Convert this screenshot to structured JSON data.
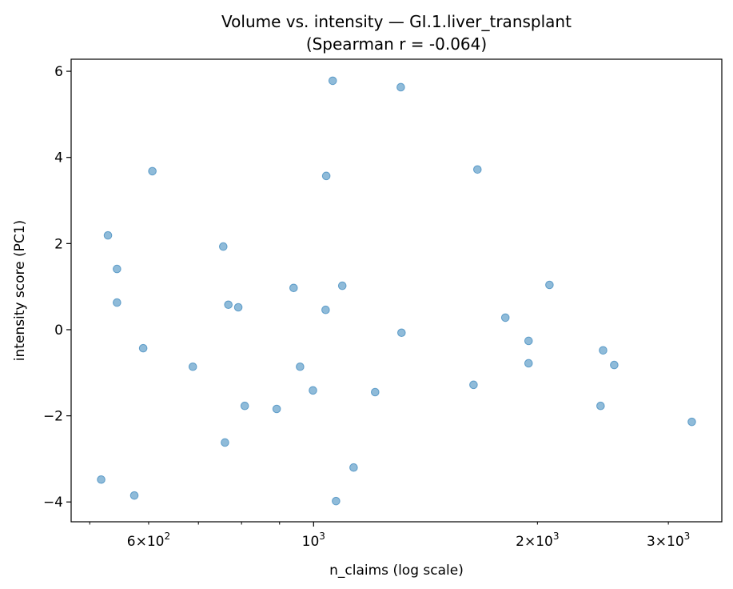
{
  "chart_data": {
    "type": "scatter",
    "title": "Volume vs. intensity — GI.1.liver_transplant",
    "subtitle": "(Spearman r = -0.064)",
    "xlabel": "n_claims (log scale)",
    "ylabel": "intensity score (PC1)",
    "xscale": "log",
    "xlim": [
      472,
      3540
    ],
    "ylim": [
      -4.46,
      6.28
    ],
    "grid": false,
    "marker_color": "#1f77b4",
    "marker_alpha": 0.5,
    "x_ticks": [
      {
        "value": 600,
        "base": "6",
        "exp": "2"
      },
      {
        "value": 1000,
        "base": "",
        "exp": "3"
      },
      {
        "value": 2000,
        "base": "2",
        "exp": "3"
      },
      {
        "value": 3000,
        "base": "3",
        "exp": "3"
      }
    ],
    "x_minor_ticks": [
      500,
      700,
      800,
      900
    ],
    "y_ticks": [
      -4,
      -2,
      0,
      2,
      4,
      6
    ],
    "y_tick_labels": [
      "−4",
      "−2",
      "0",
      "2",
      "4",
      "6"
    ],
    "points": [
      [
        518,
        -3.48
      ],
      [
        529,
        2.19
      ],
      [
        544,
        1.41
      ],
      [
        544,
        0.63
      ],
      [
        574,
        -3.85
      ],
      [
        590,
        -0.43
      ],
      [
        607,
        3.68
      ],
      [
        688,
        -0.86
      ],
      [
        756,
        1.93
      ],
      [
        760,
        -2.62
      ],
      [
        768,
        0.58
      ],
      [
        792,
        0.52
      ],
      [
        808,
        -1.77
      ],
      [
        892,
        -1.84
      ],
      [
        940,
        0.97
      ],
      [
        959,
        -0.86
      ],
      [
        998,
        -1.41
      ],
      [
        1038,
        0.46
      ],
      [
        1040,
        3.57
      ],
      [
        1061,
        5.78
      ],
      [
        1072,
        -3.98
      ],
      [
        1093,
        1.02
      ],
      [
        1132,
        -3.2
      ],
      [
        1210,
        -1.45
      ],
      [
        1310,
        5.63
      ],
      [
        1313,
        -0.07
      ],
      [
        1641,
        -1.28
      ],
      [
        1661,
        3.72
      ],
      [
        1811,
        0.28
      ],
      [
        1946,
        -0.78
      ],
      [
        1946,
        -0.26
      ],
      [
        2076,
        1.04
      ],
      [
        2432,
        -1.77
      ],
      [
        2451,
        -0.48
      ],
      [
        2537,
        -0.82
      ],
      [
        3226,
        -2.14
      ]
    ]
  }
}
